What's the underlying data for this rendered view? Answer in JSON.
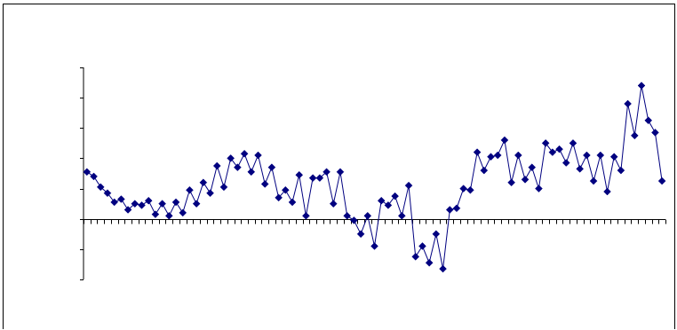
{
  "chart_data": {
    "type": "line",
    "title": "",
    "xlabel": "",
    "ylabel": "",
    "ylim": [
      -2,
      5
    ],
    "y_major_step": 1,
    "tick_labels_visible": false,
    "grid": false,
    "legend": "none",
    "series": [
      {
        "color": "#000080",
        "marker": "diamond",
        "values": [
          1.55,
          1.4,
          1.05,
          0.85,
          0.55,
          0.65,
          0.3,
          0.5,
          0.45,
          0.6,
          0.15,
          0.5,
          0.1,
          0.55,
          0.2,
          0.95,
          0.5,
          1.2,
          0.85,
          1.75,
          1.05,
          2.0,
          1.7,
          2.15,
          1.55,
          2.1,
          1.15,
          1.7,
          0.7,
          0.95,
          0.55,
          1.45,
          0.1,
          1.35,
          1.35,
          1.55,
          0.5,
          1.55,
          0.1,
          -0.05,
          -0.5,
          0.1,
          -0.9,
          0.6,
          0.45,
          0.75,
          0.1,
          1.1,
          -1.25,
          -0.9,
          -1.45,
          -0.5,
          -1.65,
          0.3,
          0.35,
          1.0,
          0.95,
          2.2,
          1.6,
          2.05,
          2.1,
          2.6,
          1.2,
          2.1,
          1.3,
          1.7,
          1.0,
          2.5,
          2.2,
          2.3,
          1.85,
          2.5,
          1.65,
          2.1,
          1.25,
          2.1,
          0.9,
          2.05,
          1.6,
          3.8,
          2.75,
          4.4,
          3.25,
          2.85,
          1.25
        ]
      }
    ]
  }
}
